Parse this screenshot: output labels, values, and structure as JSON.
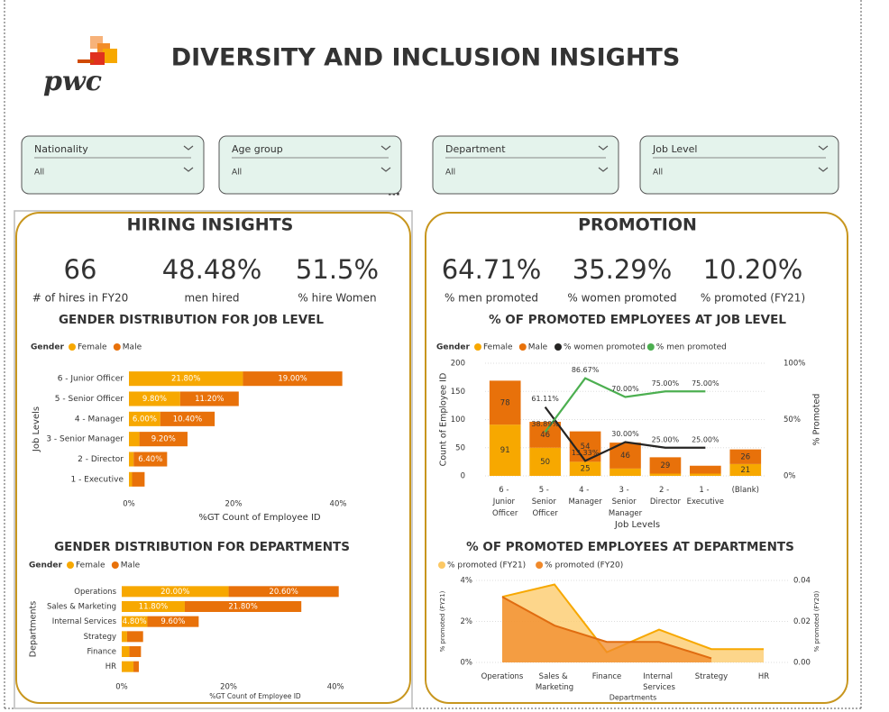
{
  "header": {
    "logo": "pwc",
    "title": "DIVERSITY AND INCLUSION INSIGHTS"
  },
  "filters": [
    {
      "label": "Nationality",
      "value": "All"
    },
    {
      "label": "Age group",
      "value": "All"
    },
    {
      "label": "Department",
      "value": "All"
    },
    {
      "label": "Job Level",
      "value": "All"
    }
  ],
  "hiring": {
    "title": "HIRING INSIGHTS",
    "kpis": [
      {
        "value": "66",
        "label": "# of hires in FY20"
      },
      {
        "value": "48.48%",
        "label": "men hired"
      },
      {
        "value": "51.5%",
        "label": "% hire Women"
      }
    ]
  },
  "promotion": {
    "title": "PROMOTION",
    "kpis": [
      {
        "value": "64.71%",
        "label": "% men promoted"
      },
      {
        "value": "35.29%",
        "label": "% women promoted"
      },
      {
        "value": "10.20%",
        "label": "% promoted (FY21)"
      }
    ]
  },
  "chart_data": [
    {
      "type": "hbar_stacked",
      "title": "GENDER DISTRIBUTION FOR JOB LEVEL",
      "legend_title": "Gender",
      "categories": [
        "6 - Junior Officer",
        "5 - Senior Officer",
        "4 - Manager",
        "3 - Senior Manager",
        "2 - Director",
        "1 - Executive"
      ],
      "series": [
        {
          "name": "Female",
          "color": "#f7a800",
          "values": [
            21.8,
            9.8,
            6.0,
            2.0,
            0.9,
            0.6
          ],
          "value_labels": [
            "21.80%",
            "9.80%",
            "6.00%",
            null,
            null,
            null
          ]
        },
        {
          "name": "Male",
          "color": "#e8710a",
          "values": [
            19.0,
            11.2,
            10.4,
            9.2,
            6.4,
            2.4
          ],
          "value_labels": [
            "19.00%",
            "11.20%",
            "10.40%",
            "9.20%",
            "6.40%",
            null
          ]
        }
      ],
      "xlim": [
        0,
        42
      ],
      "xticks": [
        {
          "value": 0,
          "label": "0%"
        },
        {
          "value": 20,
          "label": "20%"
        },
        {
          "value": 40,
          "label": "40%"
        }
      ],
      "xlabel": "%GT Count of Employee ID",
      "ylabel": "Job Levels"
    },
    {
      "type": "hbar_stacked",
      "title": "GENDER DISTRIBUTION FOR DEPARTMENTS",
      "legend_title": "Gender",
      "categories": [
        "Operations",
        "Sales & Marketing",
        "Internal Services",
        "Strategy",
        "Finance",
        "HR"
      ],
      "series": [
        {
          "name": "Female",
          "color": "#f7a800",
          "values": [
            20.0,
            11.8,
            4.8,
            1.0,
            1.4,
            2.2
          ],
          "value_labels": [
            "20.00%",
            "11.80%",
            "4.80%",
            null,
            null,
            null
          ]
        },
        {
          "name": "Male",
          "color": "#e8710a",
          "values": [
            20.6,
            21.8,
            9.6,
            3.0,
            2.2,
            1.0
          ],
          "value_labels": [
            "20.60%",
            "21.80%",
            "9.60%",
            null,
            null,
            null
          ]
        }
      ],
      "xlim": [
        0,
        42
      ],
      "xticks": [
        {
          "value": 0,
          "label": "0%"
        },
        {
          "value": 20,
          "label": "20%"
        },
        {
          "value": 40,
          "label": "40%"
        }
      ],
      "xlabel": "%GT Count of Employee ID",
      "ylabel": "Departments"
    },
    {
      "type": "combo",
      "title": "% OF PROMOTED EMPLOYEES AT JOB LEVEL",
      "legend_title": "Gender",
      "categories": [
        "6 - Junior Officer",
        "5 - Senior Officer",
        "4 - Manager",
        "3 - Senior Manager",
        "2 - Director",
        "1 - Executive",
        "(Blank)"
      ],
      "series": [
        {
          "name": "Female",
          "color": "#f7a800",
          "values": [
            91,
            50,
            25,
            13,
            4,
            4,
            21
          ],
          "value_labels": [
            "91",
            "50",
            "25",
            null,
            null,
            null,
            "21"
          ]
        },
        {
          "name": "Male",
          "color": "#e8710a",
          "values": [
            78,
            46,
            54,
            46,
            29,
            14,
            26
          ],
          "value_labels": [
            "78",
            "46",
            "54",
            "46",
            "29",
            null,
            "26"
          ]
        },
        {
          "name": "% women promoted",
          "color": "#252423",
          "axis": "y2",
          "values": [
            null,
            61.11,
            13.33,
            30.0,
            25.0,
            25.0,
            null
          ],
          "value_labels": [
            null,
            "61.11%",
            "13.33%",
            "30.00%",
            "25.00%",
            "25.00%",
            null
          ]
        },
        {
          "name": "% men promoted",
          "color": "#4caf50",
          "axis": "y2",
          "values": [
            null,
            38.89,
            86.67,
            70.0,
            75.0,
            75.0,
            null
          ],
          "value_labels": [
            null,
            "38.89%",
            "86.67%",
            "70.00%",
            "75.00%",
            "75.00%",
            null
          ]
        }
      ],
      "ylim": [
        0,
        200
      ],
      "yticks": [
        0,
        50,
        100,
        150,
        200
      ],
      "y2lim": [
        0,
        100
      ],
      "y2ticks": [
        {
          "value": 0,
          "label": "0%"
        },
        {
          "value": 50,
          "label": "50%"
        },
        {
          "value": 100,
          "label": "100%"
        }
      ],
      "xlabel": "Job Levels",
      "ylabel": "Count of Employee ID",
      "y2label": "% Promoted"
    },
    {
      "type": "area",
      "title": "% OF PROMOTED EMPLOYEES AT DEPARTMENTS",
      "categories": [
        "Operations",
        "Sales & Marketing",
        "Finance",
        "Internal Services",
        "Strategy",
        "HR"
      ],
      "series": [
        {
          "name": "% promoted (FY21)",
          "color": "#fcc864",
          "values": [
            3.2,
            3.8,
            0.5,
            1.6,
            0.65,
            0.65
          ]
        },
        {
          "name": "% promoted (FY20)",
          "color": "#f0892a",
          "axis": "y2",
          "values": [
            0.032,
            0.018,
            0.01,
            0.01,
            0.002,
            null
          ]
        }
      ],
      "ylim": [
        0,
        4
      ],
      "yticks": [
        {
          "value": 0,
          "label": "0%"
        },
        {
          "value": 2,
          "label": "2%"
        },
        {
          "value": 4,
          "label": "4%"
        }
      ],
      "y2lim": [
        0,
        0.04
      ],
      "y2ticks": [
        {
          "value": 0,
          "label": "0.00"
        },
        {
          "value": 0.02,
          "label": "0.02"
        },
        {
          "value": 0.04,
          "label": "0.04"
        }
      ],
      "xlabel": "Departments",
      "ylabel": "% promoted (FY21)",
      "y2label": "% promoted (FY20)"
    }
  ]
}
